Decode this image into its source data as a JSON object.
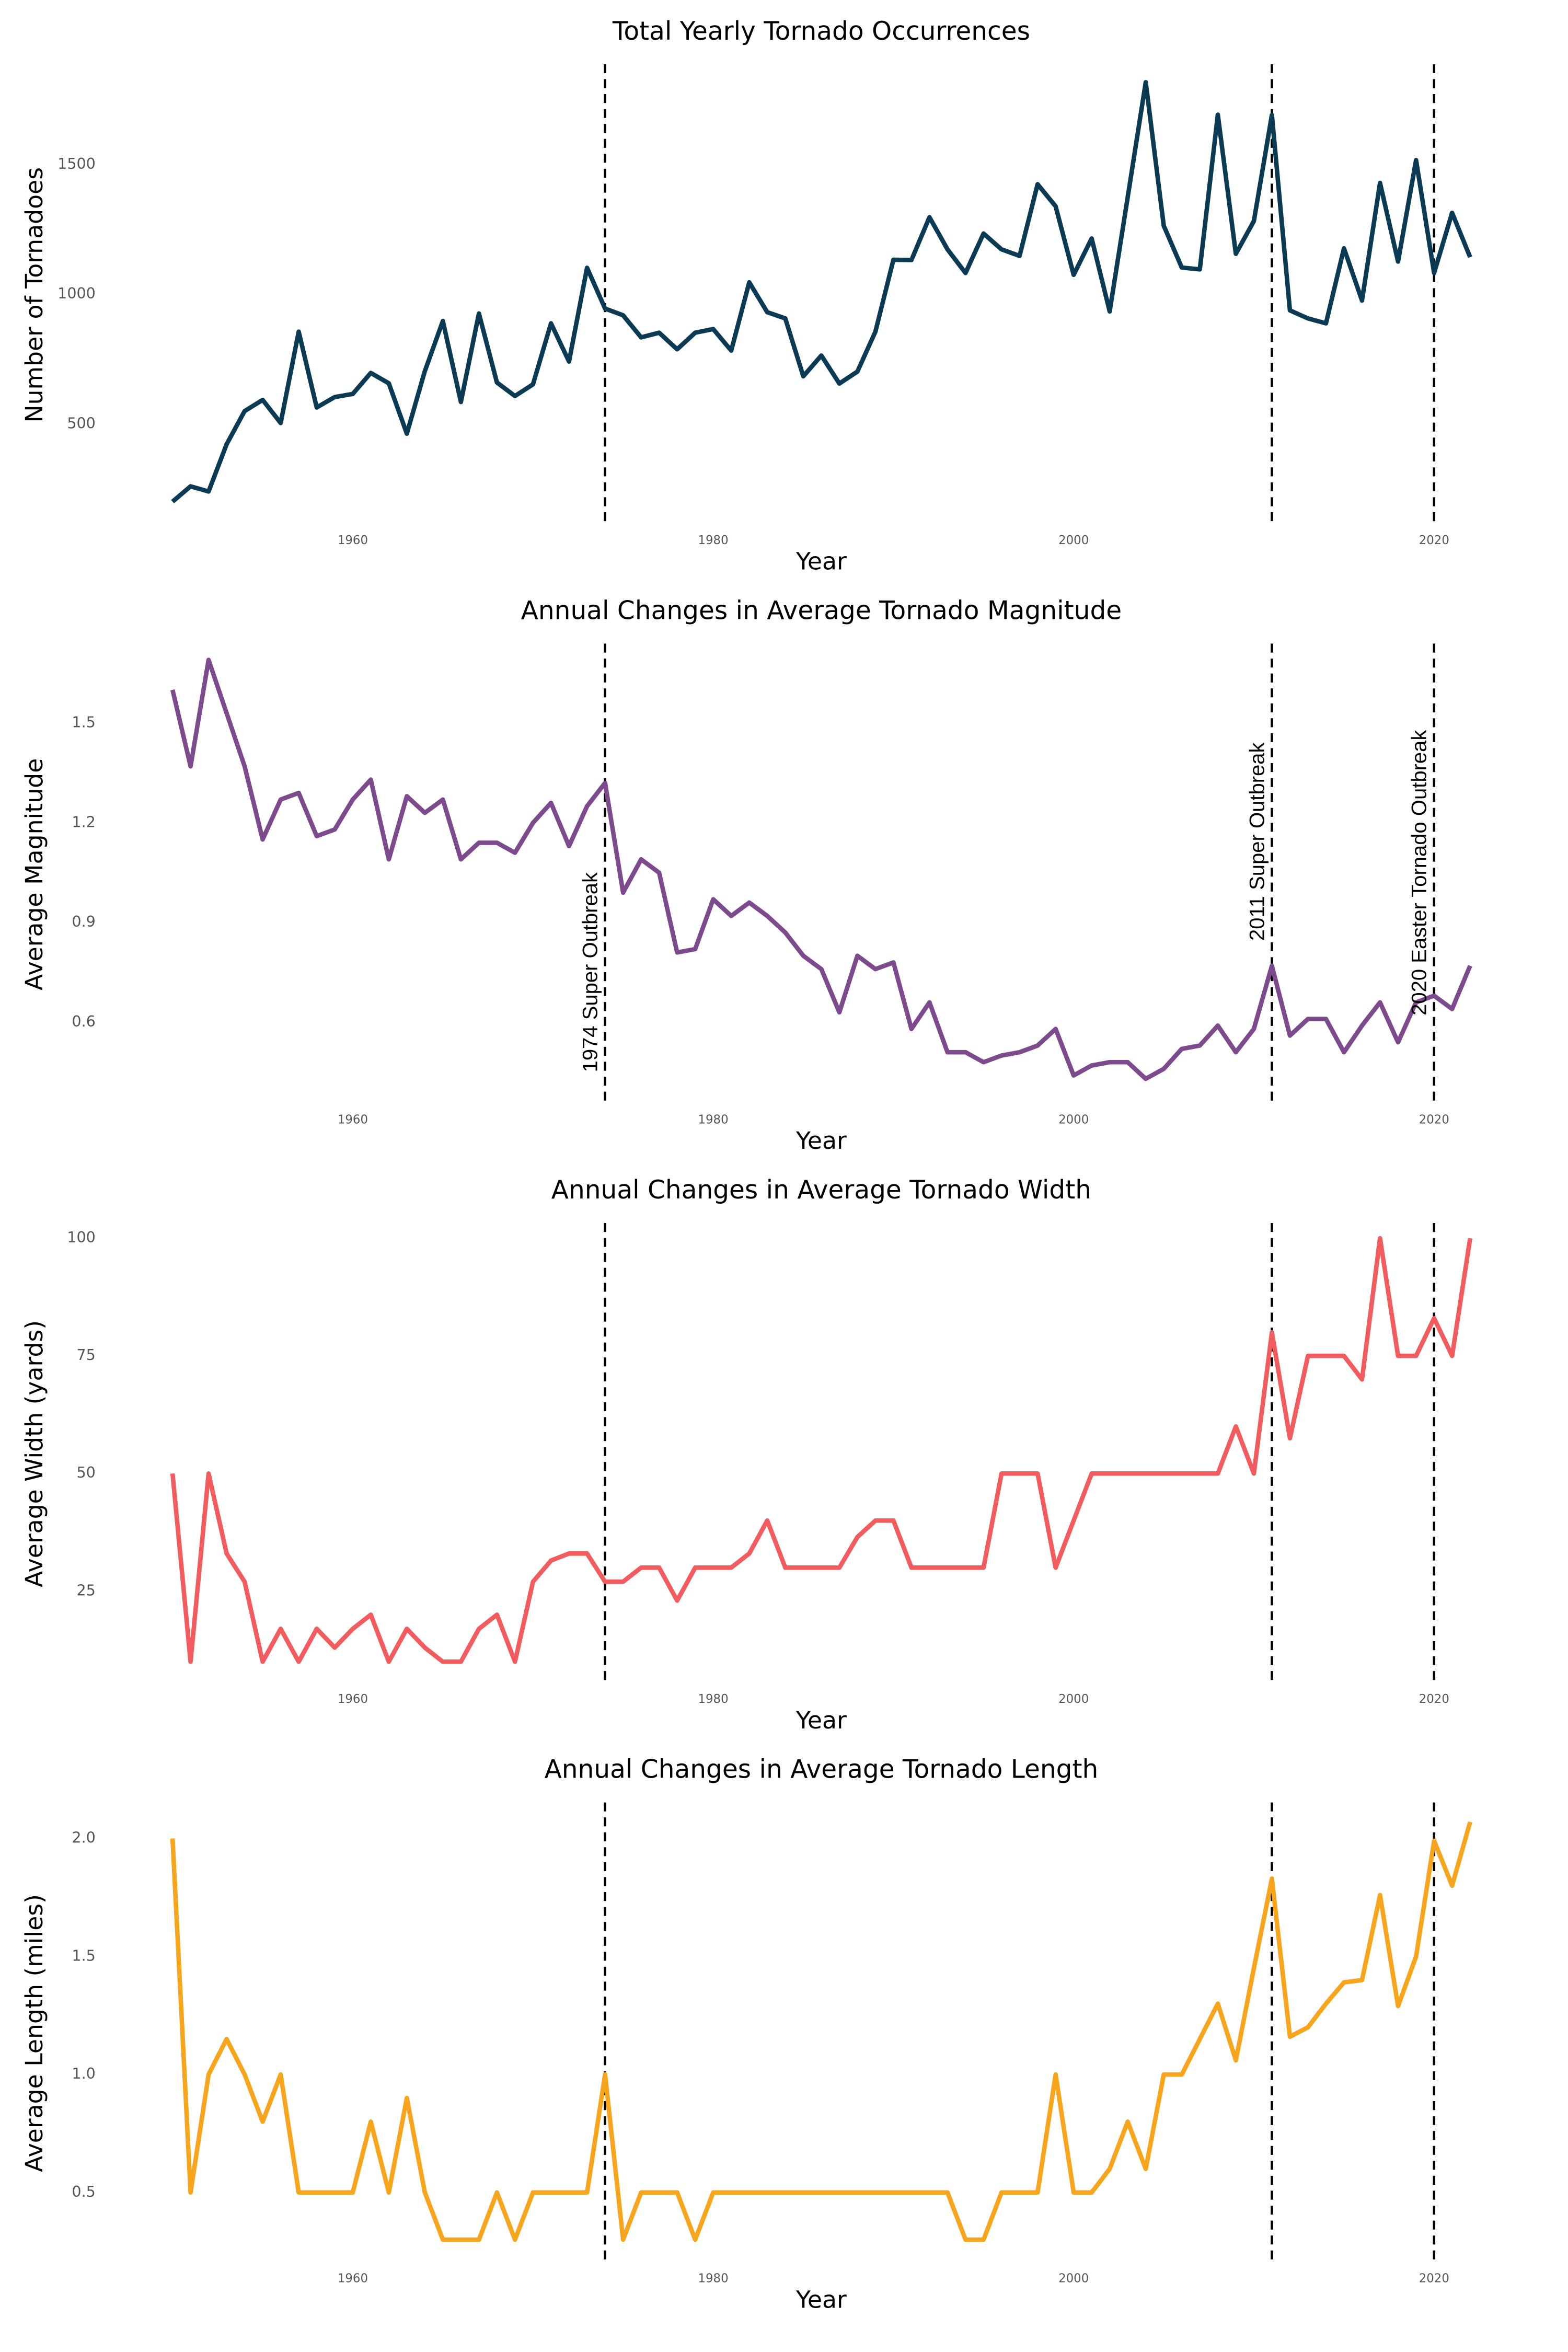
{
  "chart_data": [
    {
      "type": "line",
      "title": "Total Yearly Tornado Occurrences",
      "x_label": "Year",
      "y_label": "Number of Tornadoes",
      "color": "#0b3a55",
      "x": [
        1950,
        1951,
        1952,
        1953,
        1954,
        1955,
        1956,
        1957,
        1958,
        1959,
        1960,
        1961,
        1962,
        1963,
        1964,
        1965,
        1966,
        1967,
        1968,
        1969,
        1970,
        1971,
        1972,
        1973,
        1974,
        1975,
        1976,
        1977,
        1978,
        1979,
        1980,
        1981,
        1982,
        1983,
        1984,
        1985,
        1986,
        1987,
        1988,
        1989,
        1990,
        1991,
        1992,
        1993,
        1994,
        1995,
        1996,
        1997,
        1998,
        1999,
        2000,
        2001,
        2002,
        2003,
        2004,
        2005,
        2006,
        2007,
        2008,
        2009,
        2010,
        2011,
        2012,
        2013,
        2014,
        2015,
        2016,
        2017,
        2018,
        2019,
        2020,
        2021,
        2022
      ],
      "values": [
        201,
        260,
        240,
        422,
        550,
        593,
        504,
        856,
        564,
        604,
        616,
        697,
        657,
        463,
        704,
        897,
        585,
        926,
        660,
        608,
        653,
        888,
        741,
        1102,
        945,
        919,
        834,
        852,
        788,
        852,
        866,
        783,
        1046,
        931,
        907,
        684,
        764,
        656,
        702,
        856,
        1133,
        1132,
        1297,
        1173,
        1082,
        1234,
        1173,
        1148,
        1424,
        1339,
        1075,
        1215,
        934,
        1374,
        1817,
        1264,
        1103,
        1096,
        1692,
        1156,
        1282,
        1691,
        938,
        907,
        888,
        1177,
        976,
        1429,
        1126,
        1517,
        1082,
        1314,
        1143
      ],
      "xlim": [
        1948,
        2024
      ],
      "xticks": [
        1960,
        1980,
        2000,
        2020
      ],
      "ylim": [
        120,
        1875
      ],
      "yticks": [
        500,
        1000,
        1500
      ],
      "vlines": [
        1974,
        2011,
        2020
      ]
    },
    {
      "type": "line",
      "title": "Annual Changes in Average Tornado Magnitude",
      "x_label": "Year",
      "y_label": "Average Magnitude",
      "color": "#7d4a8d",
      "x": [
        1950,
        1951,
        1952,
        1953,
        1954,
        1955,
        1956,
        1957,
        1958,
        1959,
        1960,
        1961,
        1962,
        1963,
        1964,
        1965,
        1966,
        1967,
        1968,
        1969,
        1970,
        1971,
        1972,
        1973,
        1974,
        1975,
        1976,
        1977,
        1978,
        1979,
        1980,
        1981,
        1982,
        1983,
        1984,
        1985,
        1986,
        1987,
        1988,
        1989,
        1990,
        1991,
        1992,
        1993,
        1994,
        1995,
        1996,
        1997,
        1998,
        1999,
        2000,
        2001,
        2002,
        2003,
        2004,
        2005,
        2006,
        2007,
        2008,
        2009,
        2010,
        2011,
        2012,
        2013,
        2014,
        2015,
        2016,
        2017,
        2018,
        2019,
        2020,
        2021,
        2022
      ],
      "values": [
        1.6,
        1.37,
        1.69,
        1.53,
        1.37,
        1.15,
        1.27,
        1.29,
        1.16,
        1.18,
        1.27,
        1.33,
        1.09,
        1.28,
        1.23,
        1.27,
        1.09,
        1.14,
        1.14,
        1.11,
        1.2,
        1.26,
        1.13,
        1.25,
        1.32,
        0.99,
        1.09,
        1.05,
        0.81,
        0.82,
        0.97,
        0.92,
        0.96,
        0.92,
        0.87,
        0.8,
        0.76,
        0.63,
        0.8,
        0.76,
        0.78,
        0.58,
        0.66,
        0.51,
        0.51,
        0.48,
        0.5,
        0.51,
        0.53,
        0.58,
        0.44,
        0.47,
        0.48,
        0.48,
        0.43,
        0.46,
        0.52,
        0.53,
        0.59,
        0.51,
        0.58,
        0.77,
        0.56,
        0.61,
        0.61,
        0.51,
        0.59,
        0.66,
        0.54,
        0.66,
        0.68,
        0.64,
        0.77
      ],
      "xlim": [
        1948,
        2024
      ],
      "xticks": [
        1960,
        1980,
        2000,
        2020
      ],
      "ylim": [
        0.36,
        1.73
      ],
      "yticks": [
        0.6,
        0.9,
        1.2,
        1.5
      ],
      "vlines": [
        1974,
        2011,
        2020
      ],
      "annotations": [
        {
          "x": 1974,
          "text": "1974 Super Outbreak"
        },
        {
          "x": 2011,
          "text": "2011 Super Outbreak"
        },
        {
          "x": 2020,
          "text": "2020 Easter Tornado Outbreak"
        }
      ]
    },
    {
      "type": "line",
      "title": "Annual Changes in Average Tornado Width",
      "x_label": "Year",
      "y_label": "Average Width (yards)",
      "color": "#f25c5f",
      "x": [
        1950,
        1951,
        1952,
        1953,
        1954,
        1955,
        1956,
        1957,
        1958,
        1959,
        1960,
        1961,
        1962,
        1963,
        1964,
        1965,
        1966,
        1967,
        1968,
        1969,
        1970,
        1971,
        1972,
        1973,
        1974,
        1975,
        1976,
        1977,
        1978,
        1979,
        1980,
        1981,
        1982,
        1983,
        1984,
        1985,
        1986,
        1987,
        1988,
        1989,
        1990,
        1991,
        1992,
        1993,
        1994,
        1995,
        1996,
        1997,
        1998,
        1999,
        2000,
        2001,
        2002,
        2003,
        2004,
        2005,
        2006,
        2007,
        2008,
        2009,
        2010,
        2011,
        2012,
        2013,
        2014,
        2015,
        2016,
        2017,
        2018,
        2019,
        2020,
        2021,
        2022
      ],
      "values": [
        50,
        10,
        50,
        33,
        27,
        10,
        17,
        10,
        17,
        13,
        17,
        20,
        10,
        17,
        13,
        10,
        10,
        17,
        20,
        10,
        27,
        31.5,
        33,
        33,
        27,
        27,
        30,
        30,
        23,
        30,
        30,
        30,
        33,
        40,
        30,
        30,
        30,
        30,
        36.5,
        40,
        40,
        30,
        30,
        30,
        30,
        30,
        50,
        50,
        50,
        30,
        40,
        50,
        50,
        50,
        50,
        50,
        50,
        50,
        50,
        60,
        50,
        80,
        57.5,
        75,
        75,
        75,
        70,
        100,
        75,
        75,
        83,
        75,
        100
      ],
      "xlim": [
        1948,
        2024
      ],
      "xticks": [
        1960,
        1980,
        2000,
        2020
      ],
      "ylim": [
        5.8,
        102.6
      ],
      "yticks": [
        25,
        50,
        75,
        100
      ],
      "vlines": [
        1974,
        2011,
        2020
      ]
    },
    {
      "type": "line",
      "title": "Annual Changes in Average Tornado Length",
      "x_label": "Year",
      "y_label": "Average Length (miles)",
      "color": "#f7a51c",
      "x": [
        1950,
        1951,
        1952,
        1953,
        1954,
        1955,
        1956,
        1957,
        1958,
        1959,
        1960,
        1961,
        1962,
        1963,
        1964,
        1965,
        1966,
        1967,
        1968,
        1969,
        1970,
        1971,
        1972,
        1973,
        1974,
        1975,
        1976,
        1977,
        1978,
        1979,
        1980,
        1981,
        1982,
        1983,
        1984,
        1985,
        1986,
        1987,
        1988,
        1989,
        1990,
        1991,
        1992,
        1993,
        1994,
        1995,
        1996,
        1997,
        1998,
        1999,
        2000,
        2001,
        2002,
        2003,
        2004,
        2005,
        2006,
        2007,
        2008,
        2009,
        2010,
        2011,
        2012,
        2013,
        2014,
        2015,
        2016,
        2017,
        2018,
        2019,
        2020,
        2021,
        2022
      ],
      "values": [
        2.0,
        0.5,
        1.0,
        1.15,
        1.0,
        0.8,
        1.0,
        0.5,
        0.5,
        0.5,
        0.5,
        0.8,
        0.5,
        0.9,
        0.5,
        0.3,
        0.3,
        0.3,
        0.5,
        0.3,
        0.5,
        0.5,
        0.5,
        0.5,
        1.0,
        0.3,
        0.5,
        0.5,
        0.5,
        0.3,
        0.5,
        0.5,
        0.5,
        0.5,
        0.5,
        0.5,
        0.5,
        0.5,
        0.5,
        0.5,
        0.5,
        0.5,
        0.5,
        0.5,
        0.3,
        0.3,
        0.5,
        0.5,
        0.5,
        1.0,
        0.5,
        0.5,
        0.6,
        0.8,
        0.6,
        1.0,
        1.0,
        1.15,
        1.3,
        1.06,
        1.45,
        1.83,
        1.16,
        1.2,
        1.3,
        1.39,
        1.4,
        1.76,
        1.29,
        1.5,
        1.99,
        1.8,
        2.07
      ],
      "xlim": [
        1948,
        2024
      ],
      "xticks": [
        1960,
        1980,
        2000,
        2020
      ],
      "ylim": [
        0.21,
        2.14
      ],
      "yticks": [
        0.5,
        {
          "value": 1,
          "label": "1.0"
        },
        1.5,
        {
          "value": 2,
          "label": "2.0"
        }
      ],
      "vlines": [
        1974,
        2011,
        2020
      ]
    }
  ]
}
